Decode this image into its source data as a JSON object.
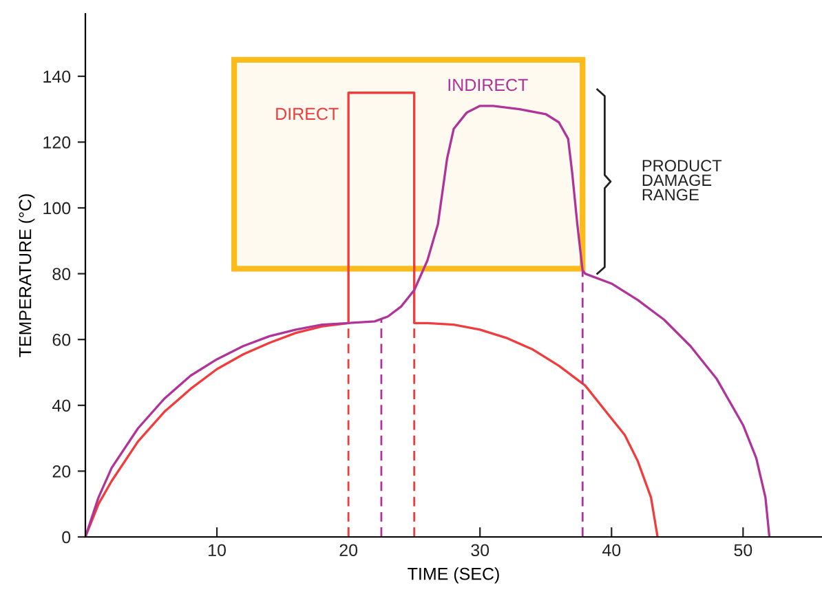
{
  "chart_data": {
    "type": "line",
    "xlabel": "TIME (SEC)",
    "ylabel": "TEMPERATURE (°C)",
    "xlim": [
      0,
      56
    ],
    "ylim": [
      0,
      159
    ],
    "xticks": [
      10,
      20,
      30,
      40,
      50
    ],
    "yticks": [
      0,
      20,
      40,
      60,
      80,
      100,
      120,
      140
    ],
    "grid": false,
    "legend": false,
    "series": [
      {
        "name": "DIRECT",
        "color": "#f03c3c",
        "x": [
          0,
          1,
          2,
          4,
          6,
          8,
          10,
          12,
          14,
          16,
          18,
          20,
          20,
          25,
          25,
          26,
          28,
          30,
          32,
          34,
          36,
          38,
          40,
          41,
          42,
          43,
          43.5
        ],
        "values": [
          0,
          10,
          17,
          29,
          38,
          45,
          51,
          55.5,
          59,
          62,
          64,
          65,
          135,
          135,
          65,
          65,
          64.5,
          63,
          60.5,
          57,
          52,
          46,
          36,
          31,
          23,
          12,
          0
        ]
      },
      {
        "name": "INDIRECT",
        "color": "#b03399",
        "x": [
          0,
          1,
          2,
          4,
          6,
          8,
          10,
          12,
          14,
          16,
          18,
          20,
          22,
          23,
          24,
          25,
          26,
          26.8,
          27.5,
          28,
          29,
          30,
          31,
          33,
          35,
          36,
          36.7,
          37,
          37.4,
          37.8,
          38,
          40,
          42,
          44,
          46,
          48,
          50,
          51,
          51.7,
          52
        ],
        "values": [
          0,
          12,
          21,
          33,
          42,
          49,
          54,
          58,
          61,
          63,
          64.5,
          65,
          65.5,
          67,
          70,
          75,
          84,
          95,
          115,
          124,
          129,
          131,
          131,
          130,
          128.5,
          126,
          121,
          111,
          95,
          81,
          80,
          77,
          72,
          66,
          58,
          48,
          34,
          24,
          12,
          0
        ]
      }
    ],
    "ref_lines": [
      {
        "axis": "x",
        "value": 20,
        "color": "#f03c3c",
        "line_style": "dashed"
      },
      {
        "axis": "x",
        "value": 22.5,
        "color": "#b03399",
        "line_style": "dashed"
      },
      {
        "axis": "x",
        "value": 25,
        "color": "#f03c3c",
        "line_style": "dashed"
      },
      {
        "axis": "x",
        "value": 37.8,
        "color": "#b03399",
        "line_style": "dashed"
      }
    ],
    "bands": [
      {
        "axis": "y",
        "from": 81.5,
        "to": 145,
        "color": "#fbbb1b"
      }
    ],
    "annotations": [
      "PRODUCT\nDAMAGE\nRANGE"
    ]
  }
}
